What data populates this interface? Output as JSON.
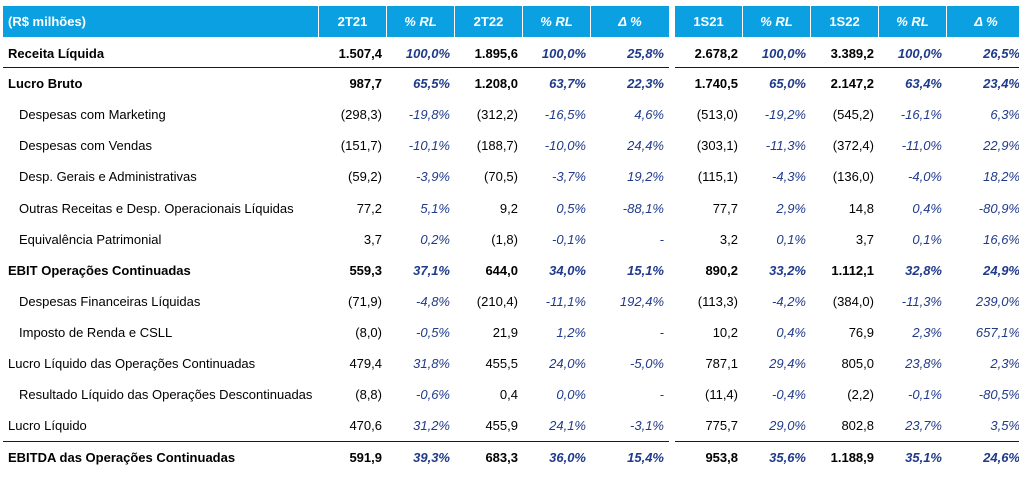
{
  "header": {
    "unit_label": "(R$ milhões)",
    "col_2t21": "2T21",
    "col_pct1": "% RL",
    "col_2t22": "2T22",
    "col_pct2": "% RL",
    "col_delta1": "Δ %",
    "col_1s21": "1S21",
    "col_pct3": "% RL",
    "col_1s22": "1S22",
    "col_pct4": "% RL",
    "col_delta2": "Δ %"
  },
  "rows": [
    {
      "label": "Receita Líquida",
      "v2t21": "1.507,4",
      "p2t21": "100,0%",
      "v2t22": "1.895,6",
      "p2t22": "100,0%",
      "d1": "25,8%",
      "v1s21": "2.678,2",
      "p1s21": "100,0%",
      "v1s22": "3.389,2",
      "p1s22": "100,0%",
      "d2": "26,5%"
    },
    {
      "label": "Lucro Bruto",
      "v2t21": "987,7",
      "p2t21": "65,5%",
      "v2t22": "1.208,0",
      "p2t22": "63,7%",
      "d1": "22,3%",
      "v1s21": "1.740,5",
      "p1s21": "65,0%",
      "v1s22": "2.147,2",
      "p1s22": "63,4%",
      "d2": "23,4%"
    },
    {
      "label": "Despesas com Marketing",
      "v2t21": "(298,3)",
      "p2t21": "-19,8%",
      "v2t22": "(312,2)",
      "p2t22": "-16,5%",
      "d1": "4,6%",
      "v1s21": "(513,0)",
      "p1s21": "-19,2%",
      "v1s22": "(545,2)",
      "p1s22": "-16,1%",
      "d2": "6,3%"
    },
    {
      "label": "Despesas com Vendas",
      "v2t21": "(151,7)",
      "p2t21": "-10,1%",
      "v2t22": "(188,7)",
      "p2t22": "-10,0%",
      "d1": "24,4%",
      "v1s21": "(303,1)",
      "p1s21": "-11,3%",
      "v1s22": "(372,4)",
      "p1s22": "-11,0%",
      "d2": "22,9%"
    },
    {
      "label": "Desp. Gerais e Administrativas",
      "v2t21": "(59,2)",
      "p2t21": "-3,9%",
      "v2t22": "(70,5)",
      "p2t22": "-3,7%",
      "d1": "19,2%",
      "v1s21": "(115,1)",
      "p1s21": "-4,3%",
      "v1s22": "(136,0)",
      "p1s22": "-4,0%",
      "d2": "18,2%"
    },
    {
      "label": "Outras Receitas e Desp. Operacionais Líquidas",
      "v2t21": "77,2",
      "p2t21": "5,1%",
      "v2t22": "9,2",
      "p2t22": "0,5%",
      "d1": "-88,1%",
      "v1s21": "77,7",
      "p1s21": "2,9%",
      "v1s22": "14,8",
      "p1s22": "0,4%",
      "d2": "-80,9%"
    },
    {
      "label": "Equivalência Patrimonial",
      "v2t21": "3,7",
      "p2t21": "0,2%",
      "v2t22": "(1,8)",
      "p2t22": "-0,1%",
      "d1": "-",
      "v1s21": "3,2",
      "p1s21": "0,1%",
      "v1s22": "3,7",
      "p1s22": "0,1%",
      "d2": "16,6%"
    },
    {
      "label": "EBIT Operações Continuadas",
      "v2t21": "559,3",
      "p2t21": "37,1%",
      "v2t22": "644,0",
      "p2t22": "34,0%",
      "d1": "15,1%",
      "v1s21": "890,2",
      "p1s21": "33,2%",
      "v1s22": "1.112,1",
      "p1s22": "32,8%",
      "d2": "24,9%"
    },
    {
      "label": "Despesas Financeiras Líquidas",
      "v2t21": "(71,9)",
      "p2t21": "-4,8%",
      "v2t22": "(210,4)",
      "p2t22": "-11,1%",
      "d1": "192,4%",
      "v1s21": "(113,3)",
      "p1s21": "-4,2%",
      "v1s22": "(384,0)",
      "p1s22": "-11,3%",
      "d2": "239,0%"
    },
    {
      "label": "Imposto de Renda e CSLL",
      "v2t21": "(8,0)",
      "p2t21": "-0,5%",
      "v2t22": "21,9",
      "p2t22": "1,2%",
      "d1": "-",
      "v1s21": "10,2",
      "p1s21": "0,4%",
      "v1s22": "76,9",
      "p1s22": "2,3%",
      "d2": "657,1%"
    },
    {
      "label": "Lucro Líquido das Operações Continuadas",
      "v2t21": "479,4",
      "p2t21": "31,8%",
      "v2t22": "455,5",
      "p2t22": "24,0%",
      "d1": "-5,0%",
      "v1s21": "787,1",
      "p1s21": "29,4%",
      "v1s22": "805,0",
      "p1s22": "23,8%",
      "d2": "2,3%"
    },
    {
      "label": "Resultado Líquido das Operações Descontinuadas",
      "v2t21": "(8,8)",
      "p2t21": "-0,6%",
      "v2t22": "0,4",
      "p2t22": "0,0%",
      "d1": "-",
      "v1s21": "(11,4)",
      "p1s21": "-0,4%",
      "v1s22": "(2,2)",
      "p1s22": "-0,1%",
      "d2": "-80,5%"
    },
    {
      "label": "Lucro Líquido",
      "v2t21": "470,6",
      "p2t21": "31,2%",
      "v2t22": "455,9",
      "p2t22": "24,1%",
      "d1": "-3,1%",
      "v1s21": "775,7",
      "p1s21": "29,0%",
      "v1s22": "802,8",
      "p1s22": "23,7%",
      "d2": "3,5%"
    },
    {
      "label": "EBITDA das Operações Continuadas",
      "v2t21": "591,9",
      "p2t21": "39,3%",
      "v2t22": "683,3",
      "p2t22": "36,0%",
      "d1": "15,4%",
      "v1s21": "953,8",
      "p1s21": "35,6%",
      "v1s22": "1.188,9",
      "p1s22": "35,1%",
      "d2": "24,6%"
    }
  ]
}
